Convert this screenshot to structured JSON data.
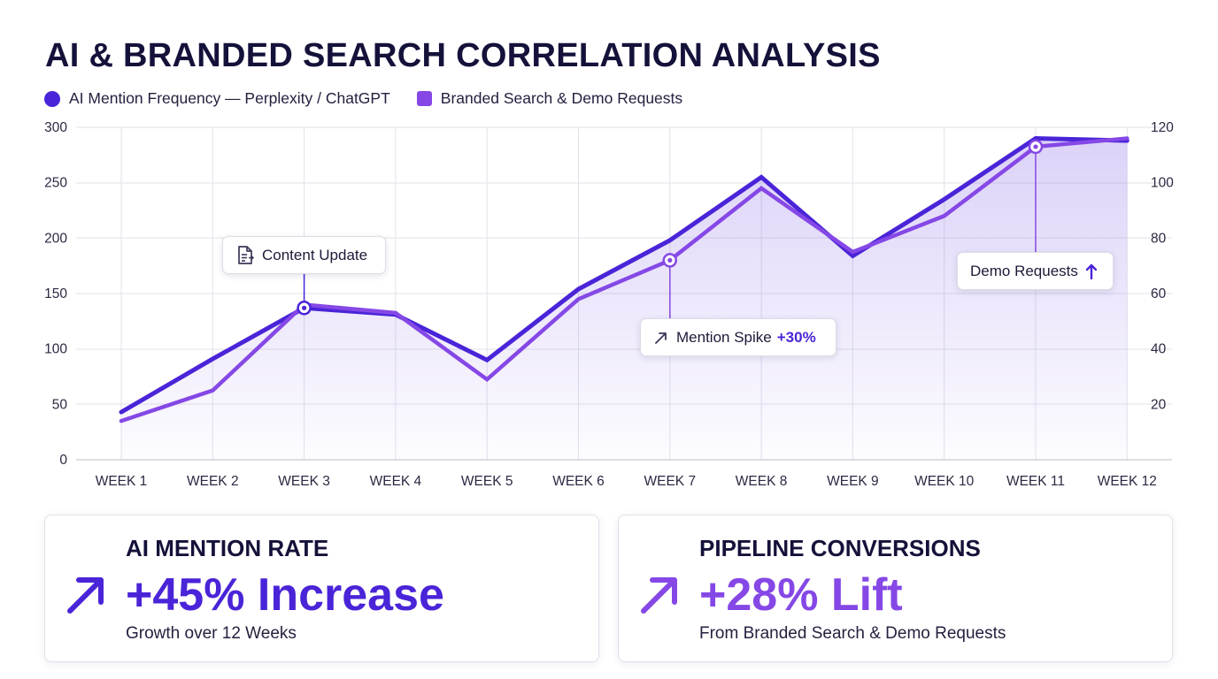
{
  "title": "AI & BRANDED SEARCH CORRELATION ANALYSIS",
  "chart_data": {
    "type": "line",
    "categories": [
      "WEEK 1",
      "WEEK 2",
      "WEEK 3",
      "WEEK 4",
      "WEEK 5",
      "WEEK 6",
      "WEEK 7",
      "WEEK 8",
      "WEEK 9",
      "WEEK 10",
      "WEEK 11",
      "WEEK 12"
    ],
    "series": [
      {
        "name": "AI Mention Frequency — Perplexity / ChatGPT",
        "axis": "left",
        "color": "#4a24d8",
        "values": [
          43,
          91,
          137,
          131,
          90,
          154,
          198,
          255,
          184,
          235,
          290,
          288
        ]
      },
      {
        "name": "Branded Search & Demo Requests",
        "axis": "right",
        "color": "#8548e6",
        "values": [
          14,
          25,
          56,
          53,
          29,
          58,
          72,
          98,
          75,
          88,
          113,
          116
        ]
      }
    ],
    "y_left": {
      "range": [
        0,
        300
      ],
      "ticks": [
        "0",
        "50",
        "100",
        "150",
        "200",
        "250",
        "300"
      ]
    },
    "y_right": {
      "range": [
        0,
        120
      ],
      "ticks": [
        "20",
        "40",
        "60",
        "80",
        "100",
        "120"
      ]
    },
    "grid": true,
    "legend": "top-left",
    "annotations": [
      {
        "text": "Content Update",
        "at": "WEEK 3",
        "series": 0,
        "icon": "document-icon"
      },
      {
        "text": "Mention Spike",
        "highlight": "+30%",
        "at": "WEEK 7",
        "series": 1,
        "icon": "trend-up-arrow-icon"
      },
      {
        "text": "Demo Requests",
        "at": "WEEK 11",
        "series": 1,
        "icon": "arrow-up-icon"
      }
    ]
  },
  "cards": [
    {
      "title": "AI MENTION RATE",
      "value": "+45% Increase",
      "subtitle": "Growth over 12 Weeks",
      "color": "#4a24d8",
      "icon": "trend-up-arrow-icon"
    },
    {
      "title": "PIPELINE CONVERSIONS",
      "value": "+28% Lift",
      "subtitle": "From Branded Search & Demo Requests",
      "color": "#8548e6",
      "icon": "trend-up-arrow-icon"
    }
  ]
}
